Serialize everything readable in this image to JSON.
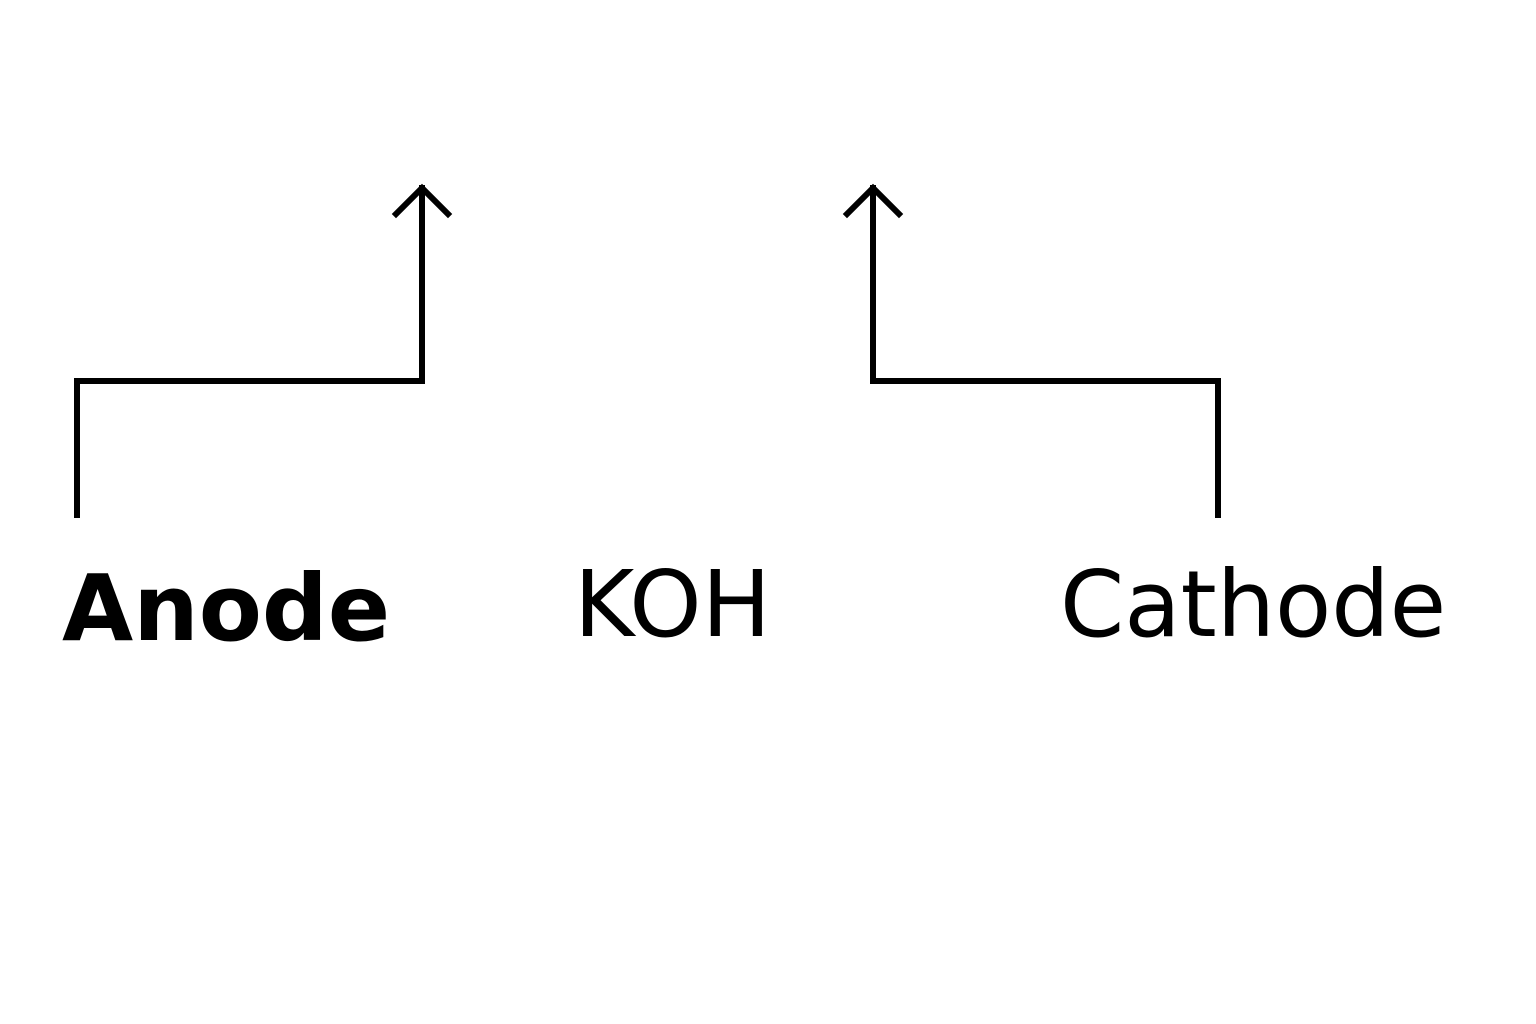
{
  "labels": {
    "anode": "Anode",
    "electrolyte": "KOH",
    "cathode": "Cathode"
  },
  "colors": {
    "line": "#000000",
    "background": "#ffffff"
  }
}
